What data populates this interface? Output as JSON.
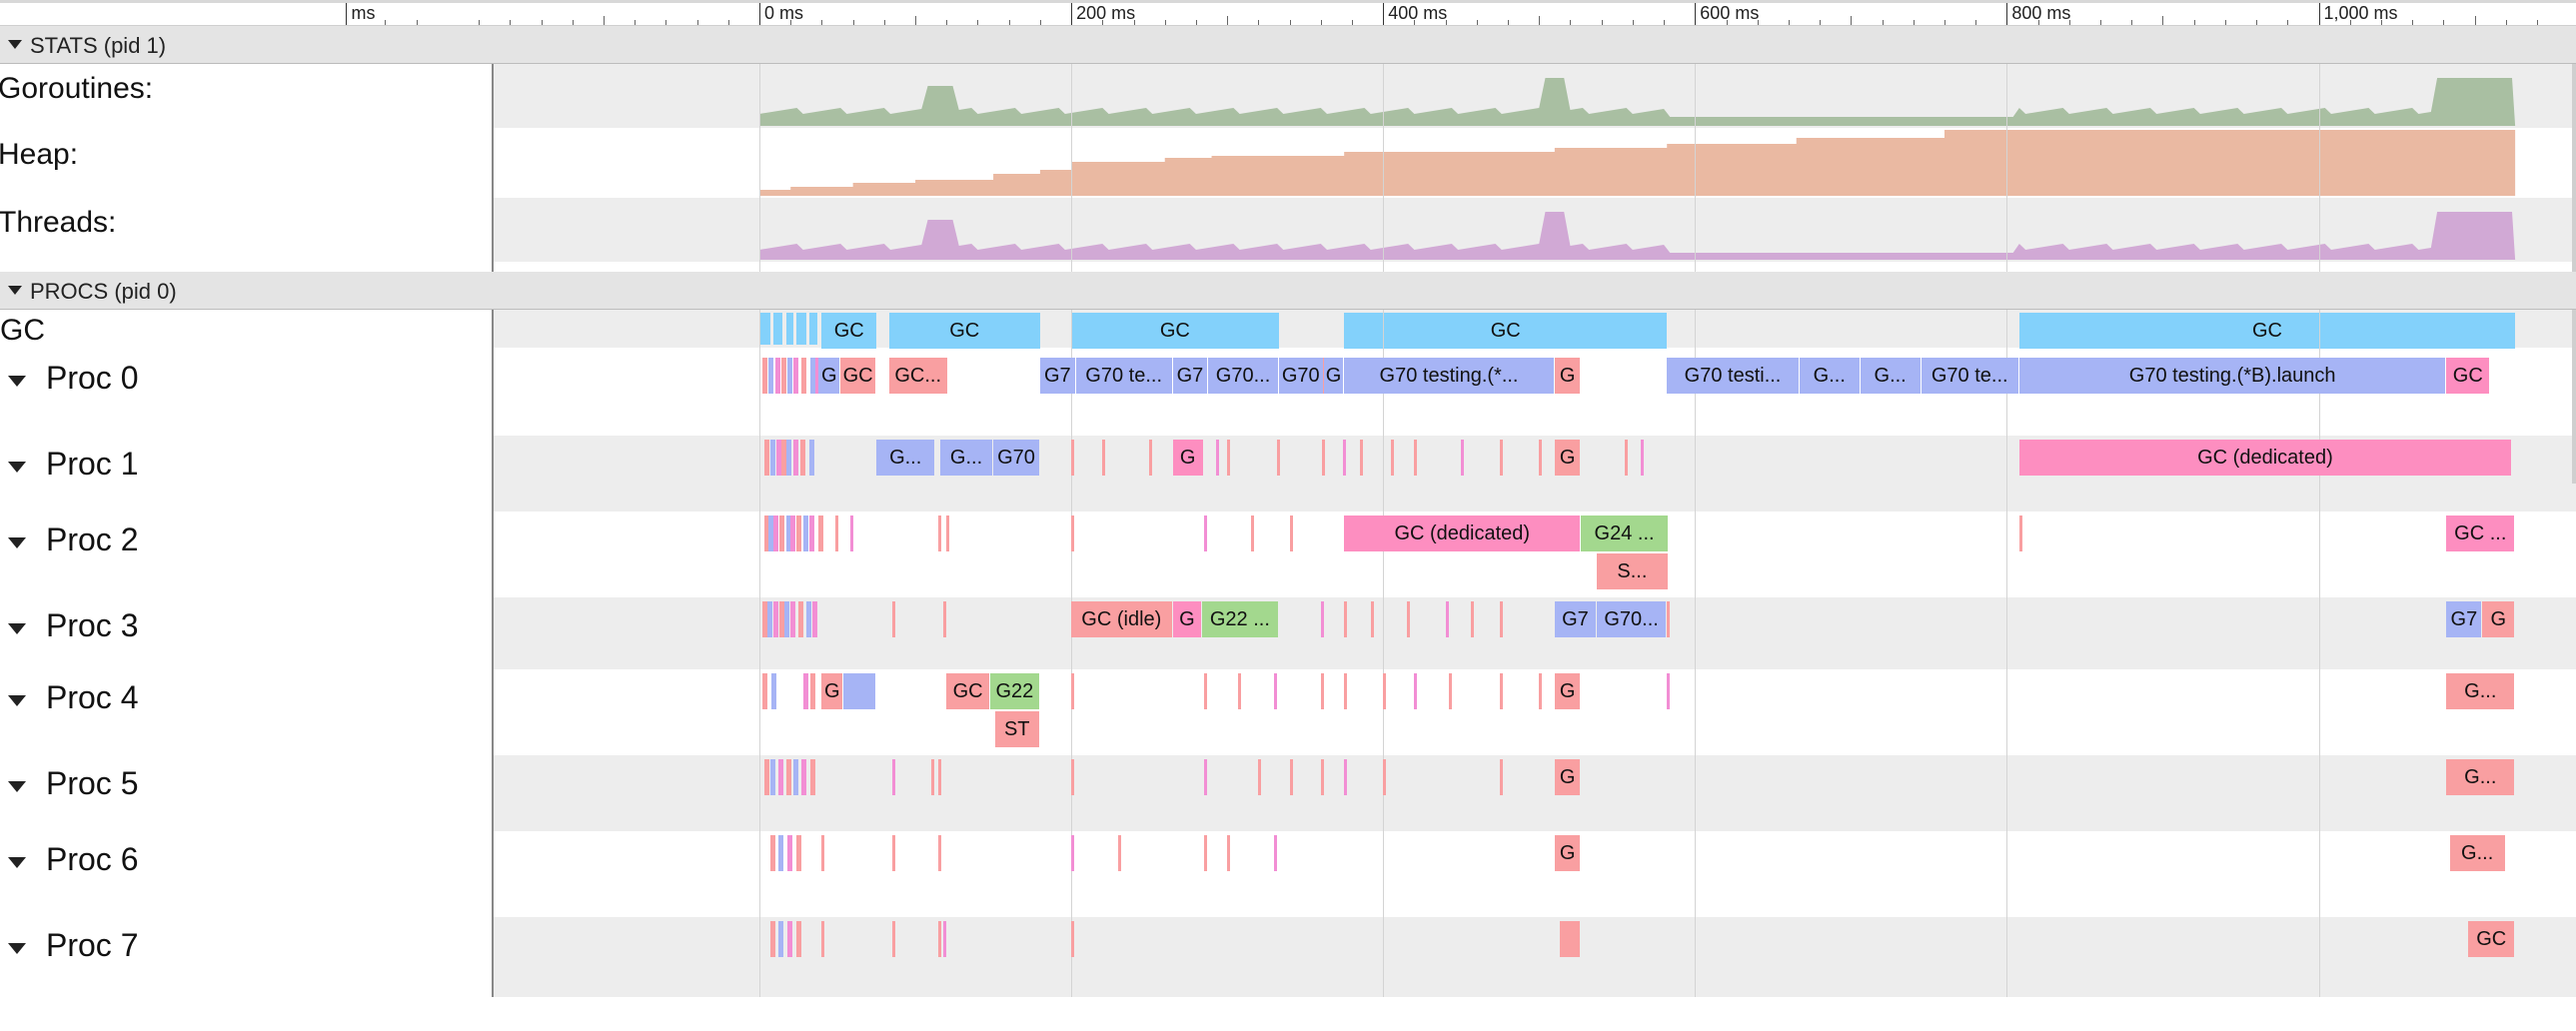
{
  "ruler": {
    "labels": [
      {
        "text": "ms",
        "t": -265
      },
      {
        "text": "0 ms",
        "t": 0
      },
      {
        "text": "200 ms",
        "t": 200
      },
      {
        "text": "400 ms",
        "t": 400
      },
      {
        "text": "600 ms",
        "t": 600
      },
      {
        "text": "800 ms",
        "t": 800
      },
      {
        "text": "1,000 ms",
        "t": 1000
      }
    ]
  },
  "sections": {
    "stats": {
      "title": "STATS (pid 1)"
    },
    "procs": {
      "title": "PROCS (pid 0)"
    }
  },
  "stats_tracks": [
    {
      "id": "goroutines",
      "label": "Goroutines:",
      "color": "#a9bfa2"
    },
    {
      "id": "heap",
      "label": "Heap:",
      "color": "#eab9a2"
    },
    {
      "id": "threads",
      "label": "Threads:",
      "color": "#d1a9d5"
    }
  ],
  "gc_track": {
    "label": "GC",
    "color": "#83d1fb",
    "slices": [
      {
        "t0": 40,
        "t1": 75,
        "label": "GC"
      },
      {
        "t0": 83,
        "t1": 180,
        "label": "GC"
      },
      {
        "t0": 200,
        "t1": 333,
        "label": "GC"
      },
      {
        "t0": 375,
        "t1": 582,
        "label": "GC"
      },
      {
        "t0": 808,
        "t1": 1126,
        "label": "GC"
      }
    ]
  },
  "colors": {
    "goroutine": "#a6b4f5",
    "gc": "#f99fa1",
    "gc_dedicated": "#fd8ec0",
    "green": "#a3d88e",
    "pink_mark": "#f28ed4"
  },
  "procs": [
    {
      "label": "Proc 0",
      "slices": [
        {
          "t0": 38,
          "t1": 52,
          "label": "G",
          "c": "goroutine"
        },
        {
          "t0": 52,
          "t1": 75,
          "label": "GC",
          "c": "gc"
        },
        {
          "t0": 83,
          "t1": 121,
          "label": "GC...",
          "c": "gc"
        },
        {
          "t0": 180,
          "t1": 203,
          "label": "G7",
          "c": "goroutine"
        },
        {
          "t0": 203,
          "t1": 265,
          "label": "G70 te...",
          "c": "goroutine"
        },
        {
          "t0": 265,
          "t1": 288,
          "label": "G7",
          "c": "goroutine"
        },
        {
          "t0": 288,
          "t1": 333,
          "label": "G70...",
          "c": "goroutine"
        },
        {
          "t0": 333,
          "t1": 362,
          "label": "G70",
          "c": "goroutine"
        },
        {
          "t0": 362,
          "t1": 375,
          "label": "G",
          "c": "goroutine"
        },
        {
          "t0": 375,
          "t1": 510,
          "label": "G70 testing.(*...",
          "c": "goroutine"
        },
        {
          "t0": 510,
          "t1": 527,
          "label": "G",
          "c": "gc"
        },
        {
          "t0": 582,
          "t1": 667,
          "label": "G70 testi...",
          "c": "goroutine"
        },
        {
          "t0": 667,
          "t1": 706,
          "label": "G...",
          "c": "goroutine"
        },
        {
          "t0": 706,
          "t1": 745,
          "label": "G...",
          "c": "goroutine"
        },
        {
          "t0": 745,
          "t1": 808,
          "label": "G70 te...",
          "c": "goroutine"
        },
        {
          "t0": 808,
          "t1": 1082,
          "label": "G70 testing.(*B).launch",
          "c": "goroutine"
        },
        {
          "t0": 1082,
          "t1": 1110,
          "label": "GC",
          "c": "gc_dedicated"
        }
      ]
    },
    {
      "label": "Proc 1",
      "slices": [
        {
          "t0": 75,
          "t1": 113,
          "label": "G...",
          "c": "goroutine"
        },
        {
          "t0": 116,
          "t1": 150,
          "label": "G...",
          "c": "goroutine"
        },
        {
          "t0": 150,
          "t1": 180,
          "label": "G70",
          "c": "goroutine"
        },
        {
          "t0": 265,
          "t1": 285,
          "label": "G",
          "c": "gc_dedicated"
        },
        {
          "t0": 510,
          "t1": 527,
          "label": "G",
          "c": "gc"
        },
        {
          "t0": 808,
          "t1": 1124,
          "label": "GC (dedicated)",
          "c": "gc_dedicated"
        }
      ]
    },
    {
      "label": "Proc 2",
      "slices": [
        {
          "t0": 375,
          "t1": 527,
          "label": "GC (dedicated)",
          "c": "gc_dedicated"
        },
        {
          "t0": 527,
          "t1": 583,
          "label": "G24 ...",
          "c": "green"
        },
        {
          "t0": 537,
          "t1": 583,
          "label": "S...",
          "c": "gc",
          "row": 1
        },
        {
          "t0": 1082,
          "t1": 1126,
          "label": "GC ...",
          "c": "gc_dedicated"
        }
      ]
    },
    {
      "label": "Proc 3",
      "slices": [
        {
          "t0": 200,
          "t1": 265,
          "label": "GC (idle)",
          "c": "gc"
        },
        {
          "t0": 265,
          "t1": 284,
          "label": "G",
          "c": "gc_dedicated"
        },
        {
          "t0": 284,
          "t1": 333,
          "label": "G22 ...",
          "c": "green"
        },
        {
          "t0": 510,
          "t1": 537,
          "label": "G7",
          "c": "goroutine"
        },
        {
          "t0": 537,
          "t1": 582,
          "label": "G70...",
          "c": "goroutine"
        },
        {
          "t0": 1082,
          "t1": 1105,
          "label": "G7",
          "c": "goroutine"
        },
        {
          "t0": 1105,
          "t1": 1126,
          "label": "G",
          "c": "gc"
        }
      ]
    },
    {
      "label": "Proc 4",
      "slices": [
        {
          "t0": 40,
          "t1": 54,
          "label": "G",
          "c": "gc"
        },
        {
          "t0": 54,
          "t1": 75,
          "label": "",
          "c": "goroutine"
        },
        {
          "t0": 120,
          "t1": 148,
          "label": "GC",
          "c": "gc"
        },
        {
          "t0": 148,
          "t1": 180,
          "label": "G22",
          "c": "green"
        },
        {
          "t0": 151,
          "t1": 180,
          "label": "ST",
          "c": "gc",
          "row": 1
        },
        {
          "t0": 510,
          "t1": 527,
          "label": "G",
          "c": "gc"
        },
        {
          "t0": 1082,
          "t1": 1126,
          "label": "G...",
          "c": "gc"
        }
      ]
    },
    {
      "label": "Proc 5",
      "slices": [
        {
          "t0": 510,
          "t1": 527,
          "label": "G",
          "c": "gc"
        },
        {
          "t0": 1082,
          "t1": 1126,
          "label": "G...",
          "c": "gc"
        }
      ]
    },
    {
      "label": "Proc 6",
      "slices": [
        {
          "t0": 510,
          "t1": 527,
          "label": "G",
          "c": "gc"
        },
        {
          "t0": 1084,
          "t1": 1120,
          "label": "G...",
          "c": "gc"
        }
      ]
    },
    {
      "label": "Proc 7",
      "slices": [
        {
          "t0": 513,
          "t1": 527,
          "label": "",
          "c": "gc"
        },
        {
          "t0": 1096,
          "t1": 1126,
          "label": "GC",
          "c": "gc"
        }
      ]
    }
  ],
  "tiny_events": {
    "proc0": [
      2,
      6,
      10,
      14,
      18,
      22,
      27,
      33,
      36,
      200,
      300,
      330,
      360,
      375,
      385,
      415,
      440,
      475,
      492
    ],
    "proc1": [
      3,
      7,
      11,
      14,
      17,
      22,
      26,
      32,
      200,
      220,
      250,
      293,
      300,
      332,
      361,
      374,
      385,
      405,
      420,
      450,
      475,
      500,
      555,
      565,
      808
    ],
    "proc2": [
      3,
      6,
      9,
      13,
      17,
      20,
      24,
      28,
      32,
      38,
      49,
      58,
      115,
      120,
      200,
      285,
      315,
      340,
      808
    ],
    "proc3": [
      2,
      5,
      9,
      13,
      16,
      20,
      25,
      30,
      34,
      85,
      118,
      360,
      375,
      392,
      415,
      440,
      456,
      475,
      582
    ],
    "proc4": [
      2,
      8,
      28,
      33,
      200,
      285,
      307,
      330,
      360,
      375,
      400,
      420,
      442,
      475,
      500,
      582
    ],
    "proc5": [
      3,
      7,
      12,
      17,
      22,
      27,
      33,
      85,
      110,
      115,
      200,
      285,
      320,
      340,
      360,
      375,
      400,
      475
    ],
    "proc6": [
      7,
      12,
      18,
      24,
      40,
      85,
      115,
      200,
      230,
      285,
      300,
      330
    ],
    "proc7": [
      7,
      12,
      18,
      24,
      40,
      85,
      115,
      118,
      200
    ]
  }
}
